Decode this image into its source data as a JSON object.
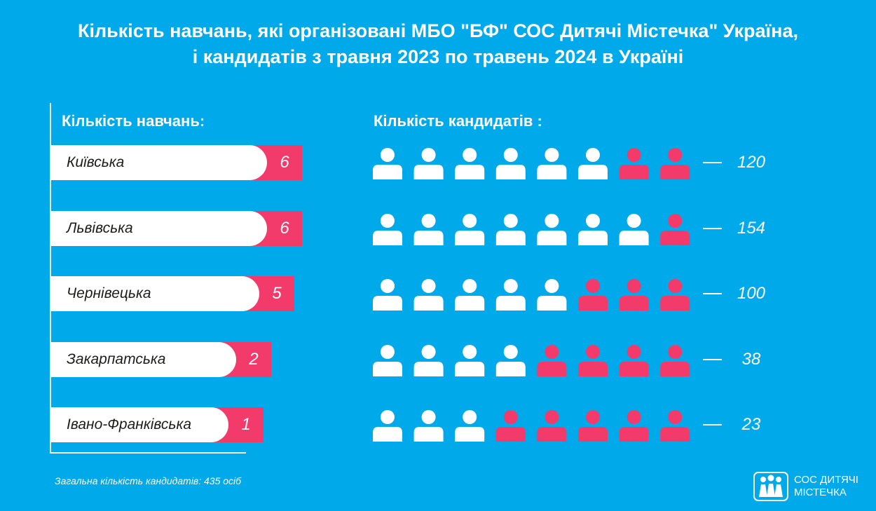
{
  "title_lines": [
    "Кількість навчань, які організовані МБО \"БФ\" СОС Дитячі Містечка\" Україна,",
    "і кандидатів з травня 2023 по травень 2024 в Україні"
  ],
  "columns": {
    "trainings_label": "Кількість навчань:",
    "candidates_label": "Кількість кандидатів :"
  },
  "colors": {
    "background": "#00a9ea",
    "accent": "#f23b6b",
    "white": "#ffffff"
  },
  "chart_data": {
    "type": "bar",
    "orientation": "horizontal",
    "categories": [
      "Київська",
      "Львівська",
      "Чернівецька",
      "Закарпатська",
      "Івано-Франківська"
    ],
    "series": [
      {
        "name": "Кількість навчань:",
        "values": [
          6,
          6,
          5,
          2,
          1
        ]
      },
      {
        "name": "Кількість кандидатів :",
        "values": [
          120,
          154,
          100,
          38,
          23
        ]
      }
    ],
    "value_labels": [
      "6",
      "6",
      "5",
      "2",
      "1"
    ],
    "count_labels": [
      "120",
      "154",
      "100",
      "38",
      "23"
    ],
    "pictogram": {
      "icons_per_row": 8,
      "white_icons": [
        6,
        7,
        5,
        4,
        3
      ]
    }
  },
  "footnote": "Загальна кількість кандидатів: 435 осіб",
  "logo": {
    "icon": "children-logo-icon",
    "line1": "СОС ДИТЯЧІ",
    "line2": "МІСТЕЧКА"
  }
}
